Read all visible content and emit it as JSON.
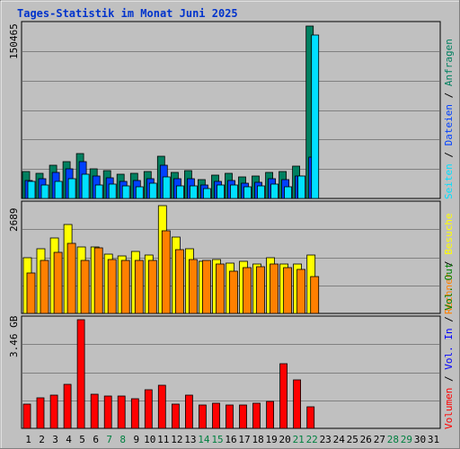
{
  "title": "Tages-Statistik im Monat Juni 2025",
  "colors": {
    "title": "#0033cc",
    "background": "#c0c0c0",
    "plot_bg": "#c0c0c0",
    "hits": "#008060",
    "files": "#0040ff",
    "pages": "#00e0ff",
    "visits": "#ffff00",
    "sites": "#ff8000",
    "volume": "#ff0000",
    "in": "#0000ff",
    "out": "#008000",
    "weekend": "#008040",
    "weekday": "#000000"
  },
  "chart_data": [
    {
      "type": "bar",
      "panel": "top",
      "ytick_label": "150465",
      "ylim": [
        0,
        150465
      ],
      "right_label": [
        "Anfragen",
        "Dateien",
        "Seiten"
      ],
      "right_separator": "/",
      "categories": [
        "1",
        "2",
        "3",
        "4",
        "5",
        "6",
        "7",
        "8",
        "9",
        "10",
        "11",
        "12",
        "13",
        "14",
        "15",
        "16",
        "17",
        "18",
        "19",
        "20",
        "21",
        "22",
        "23",
        "24",
        "25",
        "26",
        "27",
        "28",
        "29",
        "30",
        "31"
      ],
      "series": [
        {
          "name": "Anfragen",
          "values": [
            23500,
            22000,
            29000,
            32000,
            39500,
            26000,
            24000,
            21500,
            22000,
            23500,
            37000,
            23000,
            24000,
            16500,
            20000,
            22000,
            18500,
            19500,
            23000,
            23500,
            28000,
            150465,
            null,
            null,
            null,
            null,
            null,
            null,
            null,
            null,
            null
          ]
        },
        {
          "name": "Dateien",
          "values": [
            15500,
            17500,
            22500,
            25500,
            32500,
            19500,
            18000,
            15000,
            16000,
            17000,
            29000,
            17000,
            17000,
            12000,
            15000,
            16000,
            13000,
            14000,
            17500,
            16500,
            19500,
            36000,
            null,
            null,
            null,
            null,
            null,
            null,
            null,
            null,
            null
          ]
        },
        {
          "name": "Seiten",
          "values": [
            15000,
            11500,
            14500,
            17000,
            21000,
            12000,
            12500,
            11000,
            10500,
            13500,
            18500,
            11000,
            11000,
            8500,
            12000,
            12000,
            10000,
            11000,
            12500,
            10000,
            19500,
            143000,
            null,
            null,
            null,
            null,
            null,
            null,
            null,
            null,
            null
          ]
        }
      ]
    },
    {
      "type": "bar",
      "panel": "middle",
      "ytick_label": "2689",
      "ylim": [
        0,
        2689
      ],
      "right_label": [
        "Besuche",
        "Rechner"
      ],
      "right_separator": "/",
      "categories": [
        "1",
        "2",
        "3",
        "4",
        "5",
        "6",
        "7",
        "8",
        "9",
        "10",
        "11",
        "12",
        "13",
        "14",
        "15",
        "16",
        "17",
        "18",
        "19",
        "20",
        "21",
        "22",
        "23",
        "24",
        "25",
        "26",
        "27",
        "28",
        "29",
        "30",
        "31"
      ],
      "series": [
        {
          "name": "Besuche",
          "values": [
            1400,
            1620,
            1880,
            2220,
            1650,
            1650,
            1490,
            1430,
            1540,
            1460,
            2689,
            1900,
            1620,
            1290,
            1340,
            1250,
            1300,
            1230,
            1380,
            1230,
            1230,
            1460,
            null,
            null,
            null,
            null,
            null,
            null,
            null,
            null,
            null
          ]
        },
        {
          "name": "Rechner",
          "values": [
            1000,
            1320,
            1530,
            1750,
            1330,
            1630,
            1350,
            1320,
            1330,
            1320,
            2070,
            1600,
            1350,
            1330,
            1230,
            1060,
            1150,
            1170,
            1230,
            1140,
            1100,
            910,
            null,
            null,
            null,
            null,
            null,
            null,
            null,
            null,
            null
          ]
        }
      ]
    },
    {
      "type": "bar",
      "panel": "bottom",
      "ytick_label": "3.46 GB",
      "ylim": [
        0,
        3.46
      ],
      "right_label": [
        "Volumen",
        "Vol. In",
        "Vol. Out"
      ],
      "right_separator": "/",
      "categories": [
        "1",
        "2",
        "3",
        "4",
        "5",
        "6",
        "7",
        "8",
        "9",
        "10",
        "11",
        "12",
        "13",
        "14",
        "15",
        "16",
        "17",
        "18",
        "19",
        "20",
        "21",
        "22",
        "23",
        "24",
        "25",
        "26",
        "27",
        "28",
        "29",
        "30",
        "31"
      ],
      "series": [
        {
          "name": "Volumen",
          "values": [
            0.77,
            0.98,
            1.07,
            1.41,
            3.46,
            1.1,
            1.03,
            1.03,
            0.95,
            1.22,
            1.36,
            0.78,
            1.05,
            0.73,
            0.79,
            0.73,
            0.73,
            0.81,
            0.86,
            2.07,
            1.53,
            0.68,
            null,
            null,
            null,
            null,
            null,
            null,
            null,
            null,
            null
          ]
        }
      ]
    }
  ],
  "days": [
    {
      "label": "1",
      "weekend": false
    },
    {
      "label": "2",
      "weekend": false
    },
    {
      "label": "3",
      "weekend": false
    },
    {
      "label": "4",
      "weekend": false
    },
    {
      "label": "5",
      "weekend": false
    },
    {
      "label": "6",
      "weekend": false
    },
    {
      "label": "7",
      "weekend": true
    },
    {
      "label": "8",
      "weekend": true
    },
    {
      "label": "9",
      "weekend": false
    },
    {
      "label": "10",
      "weekend": false
    },
    {
      "label": "11",
      "weekend": false
    },
    {
      "label": "12",
      "weekend": false
    },
    {
      "label": "13",
      "weekend": false
    },
    {
      "label": "14",
      "weekend": true
    },
    {
      "label": "15",
      "weekend": true
    },
    {
      "label": "16",
      "weekend": false
    },
    {
      "label": "17",
      "weekend": false
    },
    {
      "label": "18",
      "weekend": false
    },
    {
      "label": "19",
      "weekend": false
    },
    {
      "label": "20",
      "weekend": false
    },
    {
      "label": "21",
      "weekend": true
    },
    {
      "label": "22",
      "weekend": true
    },
    {
      "label": "23",
      "weekend": false
    },
    {
      "label": "24",
      "weekend": false
    },
    {
      "label": "25",
      "weekend": false
    },
    {
      "label": "26",
      "weekend": false
    },
    {
      "label": "27",
      "weekend": false
    },
    {
      "label": "28",
      "weekend": true
    },
    {
      "label": "29",
      "weekend": true
    },
    {
      "label": "30",
      "weekend": false
    },
    {
      "label": "31",
      "weekend": false
    }
  ]
}
